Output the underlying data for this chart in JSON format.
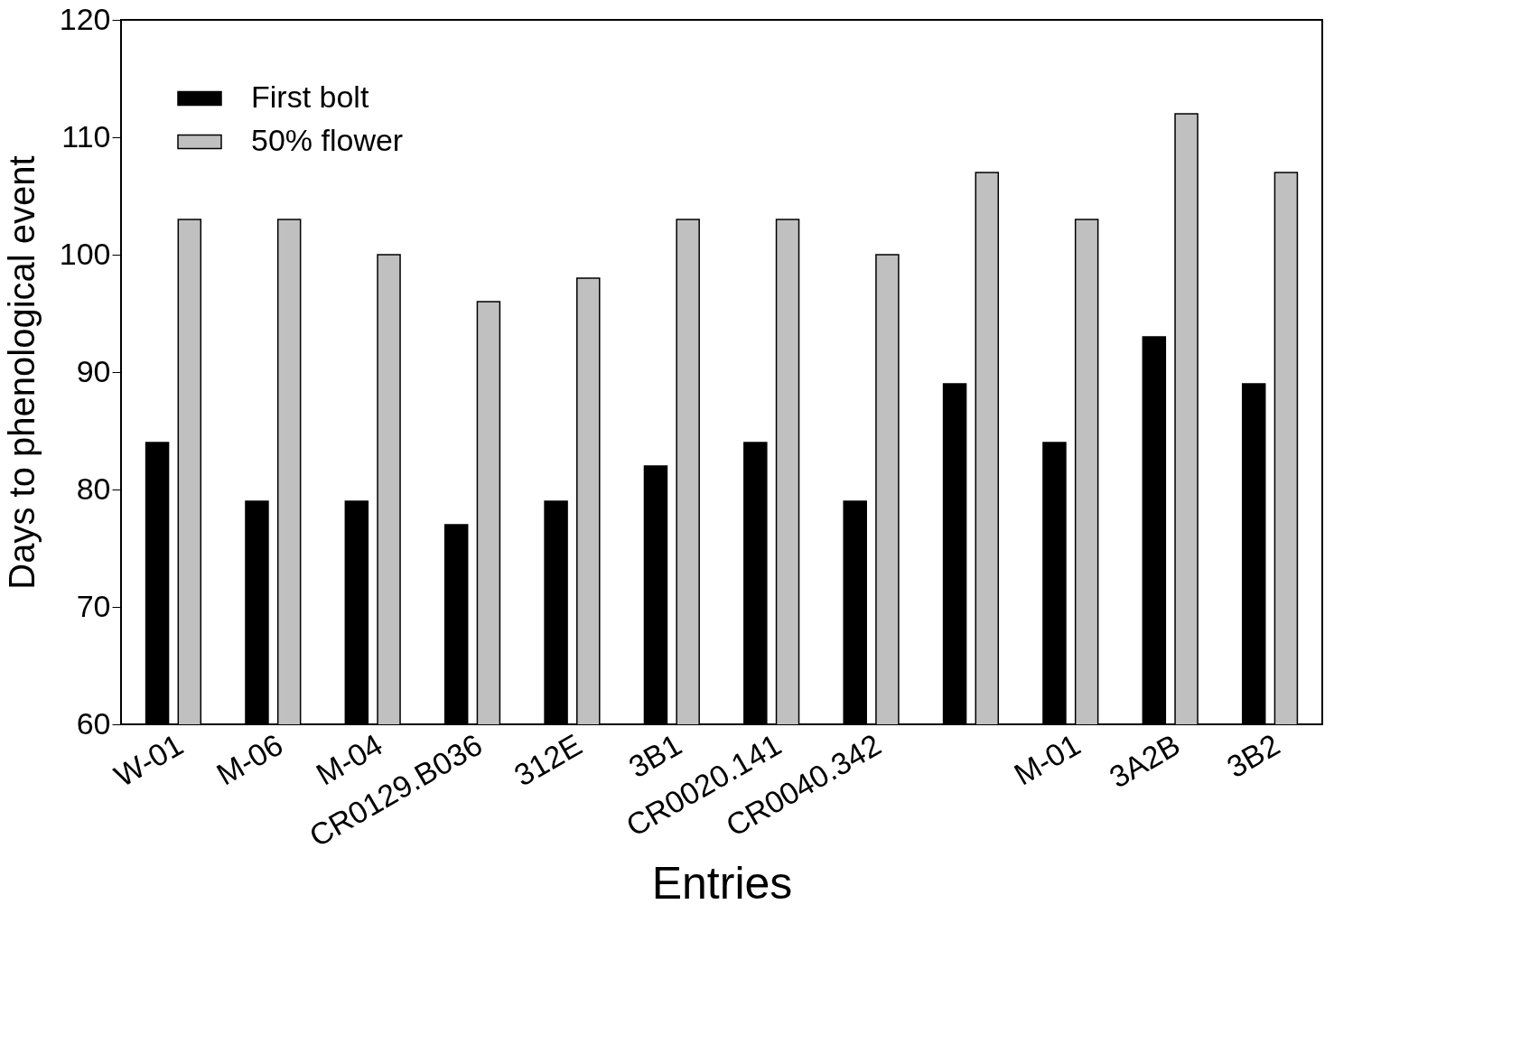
{
  "chart_data": {
    "type": "bar",
    "xlabel": "Entries",
    "ylabel": "Days to phenological event",
    "categories": [
      "W-01",
      "M-06",
      "M-04",
      "CR0129.B036",
      "312E",
      "3B1",
      "CR0020.141",
      "CR0040.342",
      null,
      "M-01",
      "3A2B",
      "3B2"
    ],
    "series": [
      {
        "name": "First bolt",
        "color": "#000000",
        "values": [
          84,
          79,
          79,
          77,
          79,
          82,
          84,
          79,
          89,
          84,
          93,
          89
        ]
      },
      {
        "name": "50% flower",
        "color": "#c0c0c0",
        "values": [
          103,
          103,
          100,
          96,
          98,
          103,
          103,
          100,
          107,
          103,
          112,
          107
        ]
      }
    ],
    "ylim": [
      60,
      120
    ],
    "yticks": [
      60,
      70,
      80,
      90,
      100,
      110,
      120
    ],
    "grid": false,
    "legend": "top left"
  }
}
